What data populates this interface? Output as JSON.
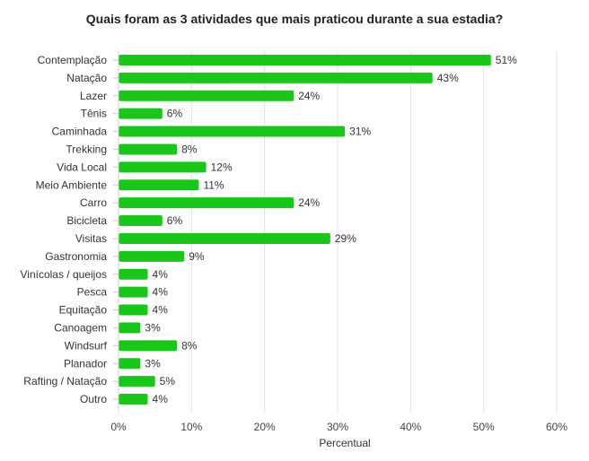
{
  "chart_data": {
    "type": "bar",
    "orientation": "horizontal",
    "title": "Quais foram as 3 atividades que mais praticou durante a sua estadia?",
    "xlabel": "Percentual",
    "ylabel": "",
    "xlim": [
      0,
      60
    ],
    "xticks": [
      0,
      10,
      20,
      30,
      40,
      50,
      60
    ],
    "xtick_labels": [
      "0%",
      "10%",
      "20%",
      "30%",
      "40%",
      "50%",
      "60%"
    ],
    "grid": true,
    "bar_color": "#19c619",
    "categories": [
      "Contemplação",
      "Natação",
      "Lazer",
      "Tênis",
      "Caminhada",
      "Trekking",
      "Vida Local",
      "Meio Ambiente",
      "Carro",
      "Bicicleta",
      "Visitas",
      "Gastronomia",
      "Vinícolas / queijos",
      "Pesca",
      "Equitação",
      "Canoagem",
      "Windsurf",
      "Planador",
      "Rafting / Natação",
      "Outro"
    ],
    "values": [
      51,
      43,
      24,
      6,
      31,
      8,
      12,
      11,
      24,
      6,
      29,
      9,
      4,
      4,
      4,
      3,
      8,
      3,
      5,
      4
    ],
    "value_labels": [
      "51%",
      "43%",
      "24%",
      "6%",
      "31%",
      "8%",
      "12%",
      "11%",
      "24%",
      "6%",
      "29%",
      "9%",
      "4%",
      "4%",
      "4%",
      "3%",
      "8%",
      "3%",
      "5%",
      "4%"
    ]
  }
}
